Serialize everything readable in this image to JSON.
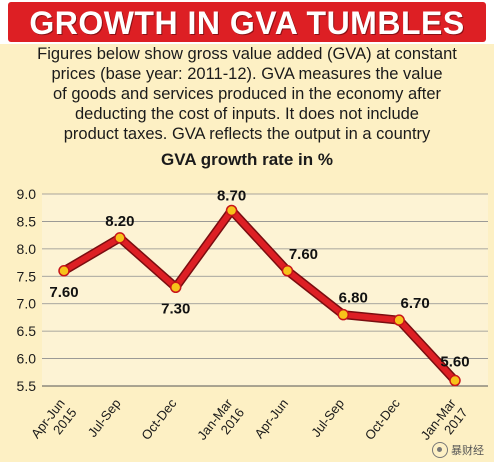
{
  "headline": "GROWTH IN GVA TUMBLES",
  "description_lines": [
    "Figures below show gross value added (GVA) at constant",
    "prices (base year: 2011-12). GVA measures the value",
    "of goods and services produced in the economy after",
    "deducting the cost of inputs. It does not include",
    "product taxes. GVA reflects the output in a country"
  ],
  "colors": {
    "banner": "#dd1f24",
    "background": "#fdf0c4",
    "line": "#dd1f24",
    "marker": "#f7c21a"
  },
  "chart_data": {
    "type": "line",
    "title": "GVA growth rate in %",
    "categories": [
      [
        "Apr-Jun",
        "2015"
      ],
      [
        "Jul-Sep"
      ],
      [
        "Oct-Dec"
      ],
      [
        "Jan-Mar",
        "2016"
      ],
      [
        "Apr-Jun"
      ],
      [
        "Jul-Sep"
      ],
      [
        "Oct-Dec"
      ],
      [
        "Jan-Mar",
        "2017"
      ]
    ],
    "values": [
      7.6,
      8.2,
      7.3,
      8.7,
      7.6,
      6.8,
      6.7,
      5.6
    ],
    "data_labels": [
      "7.60",
      "8.20",
      "7.30",
      "8.70",
      "7.60",
      "6.80",
      "6.70",
      "5.60"
    ],
    "ylim": [
      5.5,
      9.0
    ],
    "yticks": [
      "9.0",
      "8.5",
      "8.0",
      "7.5",
      "7.0",
      "6.5",
      "6.0",
      "5.5"
    ],
    "grid": true,
    "xlabel": "",
    "ylabel": ""
  },
  "watermark": {
    "text": "暴财经",
    "icon": "wechat-logo-icon"
  }
}
